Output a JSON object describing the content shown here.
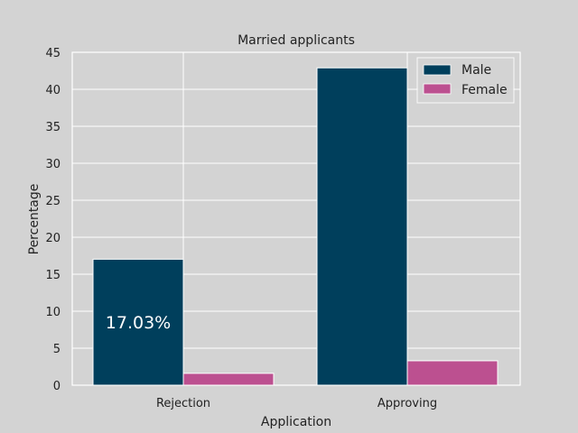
{
  "chart_data": {
    "type": "bar",
    "title": "Married applicants",
    "xlabel": "Application",
    "ylabel": "Percentage",
    "categories": [
      "Rejection",
      "Approving"
    ],
    "series": [
      {
        "name": "Male",
        "values": [
          17.03,
          42.9
        ],
        "color": "#003f5c"
      },
      {
        "name": "Female",
        "values": [
          1.6,
          3.3
        ],
        "color": "#bc5090"
      }
    ],
    "ylim": [
      0,
      45
    ],
    "yticks": [
      0,
      5,
      10,
      15,
      20,
      25,
      30,
      35,
      40,
      45
    ],
    "grid": true,
    "legend_position": "top-right",
    "annotations": [
      {
        "text": "17.03%",
        "category": "Rejection",
        "series": "Male"
      }
    ]
  }
}
